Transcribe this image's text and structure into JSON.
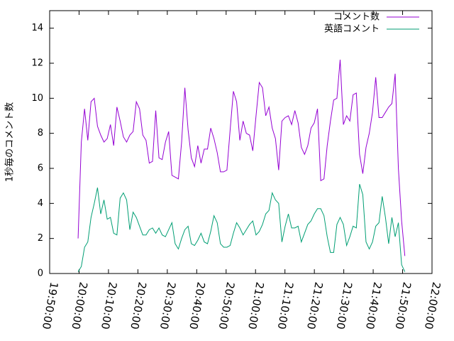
{
  "chart_data": {
    "type": "line",
    "y_label": "1秒毎のコメント数",
    "xlim": [
      "19:50:00",
      "22:00:00"
    ],
    "xticks": [
      "19:50:00",
      "20:00:00",
      "20:10:00",
      "20:20:00",
      "20:30:00",
      "20:40:00",
      "20:50:00",
      "21:00:00",
      "21:10:00",
      "21:20:00",
      "21:30:00",
      "21:40:00",
      "21:50:00",
      "22:00:00"
    ],
    "ylim": [
      0,
      15
    ],
    "yticks": [
      0,
      2,
      4,
      6,
      8,
      10,
      12,
      14
    ],
    "grid": false,
    "legend": "top-right",
    "x": [
      "19:59:40",
      "20:00:46",
      "20:01:52",
      "20:02:58",
      "20:04:04",
      "20:05:10",
      "20:06:16",
      "20:07:22",
      "20:08:28",
      "20:09:34",
      "20:10:40",
      "20:11:46",
      "20:12:52",
      "20:13:58",
      "20:15:04",
      "20:16:10",
      "20:17:16",
      "20:18:22",
      "20:19:28",
      "20:20:34",
      "20:21:40",
      "20:22:46",
      "20:23:52",
      "20:24:58",
      "20:26:04",
      "20:27:10",
      "20:28:16",
      "20:29:22",
      "20:30:28",
      "20:31:34",
      "20:32:40",
      "20:33:46",
      "20:34:52",
      "20:35:58",
      "20:37:04",
      "20:38:10",
      "20:39:16",
      "20:40:22",
      "20:41:28",
      "20:42:34",
      "20:43:40",
      "20:44:46",
      "20:45:52",
      "20:46:58",
      "20:48:04",
      "20:49:10",
      "20:50:16",
      "20:51:22",
      "20:52:28",
      "20:53:34",
      "20:54:40",
      "20:55:46",
      "20:56:52",
      "20:57:58",
      "20:59:04",
      "21:00:10",
      "21:01:16",
      "21:02:22",
      "21:03:28",
      "21:04:34",
      "21:05:40",
      "21:06:46",
      "21:07:52",
      "21:08:58",
      "21:10:04",
      "21:11:10",
      "21:12:16",
      "21:13:22",
      "21:14:28",
      "21:15:34",
      "21:16:40",
      "21:17:46",
      "21:18:52",
      "21:19:58",
      "21:21:04",
      "21:22:10",
      "21:23:16",
      "21:24:22",
      "21:25:28",
      "21:26:34",
      "21:27:40",
      "21:28:46",
      "21:29:52",
      "21:30:58",
      "21:32:04",
      "21:33:10",
      "21:34:16",
      "21:35:22",
      "21:36:28",
      "21:37:34",
      "21:38:40",
      "21:39:46",
      "21:40:52",
      "21:41:58",
      "21:43:04",
      "21:44:10",
      "21:45:16",
      "21:46:22",
      "21:47:28",
      "21:48:34",
      "21:49:40",
      "21:50:46"
    ],
    "series": [
      {
        "name": "コメント数",
        "color": "#9400d3",
        "values": [
          2.0,
          7.5,
          9.4,
          7.6,
          9.8,
          10.0,
          8.4,
          7.9,
          7.5,
          7.7,
          8.5,
          7.3,
          9.5,
          8.7,
          7.8,
          7.5,
          7.9,
          8.1,
          9.8,
          9.4,
          7.9,
          7.6,
          6.3,
          6.4,
          9.3,
          6.6,
          6.5,
          7.5,
          8.1,
          5.6,
          5.5,
          5.4,
          7.5,
          10.6,
          8.2,
          6.6,
          6.1,
          7.3,
          6.3,
          7.1,
          7.1,
          8.3,
          7.7,
          6.9,
          5.8,
          5.8,
          5.9,
          8.2,
          10.4,
          9.8,
          7.6,
          8.7,
          8.0,
          7.9,
          7.0,
          9.0,
          10.9,
          10.6,
          9.0,
          9.5,
          8.3,
          7.7,
          5.9,
          8.7,
          8.9,
          9.0,
          8.5,
          9.3,
          8.6,
          7.2,
          6.8,
          7.3,
          8.3,
          8.6,
          9.4,
          5.3,
          5.4,
          7.3,
          8.7,
          9.9,
          10.0,
          12.2,
          8.5,
          9.0,
          8.7,
          10.2,
          10.3,
          6.8,
          5.7,
          7.2,
          8.0,
          9.2,
          11.2,
          8.9,
          8.9,
          9.2,
          9.5,
          9.7,
          11.4,
          6.0,
          3.0,
          1.0
        ]
      },
      {
        "name": "英語コメント",
        "color": "#009e73",
        "values": [
          0.1,
          0.4,
          1.5,
          1.8,
          3.2,
          4.0,
          4.9,
          3.4,
          4.2,
          3.1,
          3.2,
          2.3,
          2.2,
          4.3,
          4.6,
          4.2,
          2.5,
          3.5,
          3.2,
          2.7,
          2.2,
          2.2,
          2.5,
          2.6,
          2.3,
          2.6,
          2.2,
          2.1,
          2.5,
          2.9,
          1.7,
          1.4,
          2.0,
          2.5,
          2.7,
          1.7,
          1.6,
          1.9,
          2.3,
          1.8,
          1.7,
          2.4,
          3.3,
          2.9,
          1.7,
          1.5,
          1.5,
          1.6,
          2.3,
          2.9,
          2.6,
          2.2,
          2.5,
          2.8,
          3.0,
          2.2,
          2.4,
          2.8,
          3.4,
          3.6,
          4.6,
          4.2,
          4.0,
          1.8,
          2.7,
          3.4,
          2.6,
          2.6,
          2.7,
          1.8,
          2.3,
          2.8,
          3.0,
          3.4,
          3.7,
          3.7,
          3.3,
          2.1,
          1.2,
          1.2,
          2.8,
          3.2,
          2.8,
          1.6,
          2.1,
          2.7,
          2.6,
          5.1,
          4.5,
          1.8,
          1.4,
          1.8,
          2.7,
          2.9,
          4.4,
          3.2,
          1.7,
          3.2,
          2.1,
          2.9,
          0.5,
          0.1
        ]
      }
    ]
  }
}
